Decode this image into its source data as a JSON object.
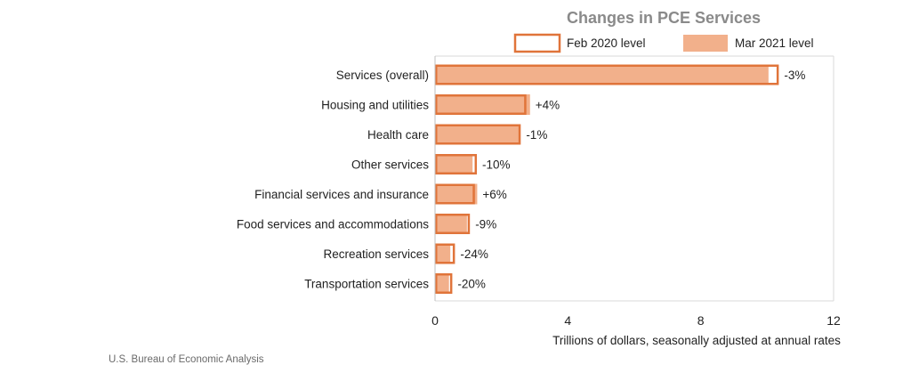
{
  "chart_data": {
    "type": "bar",
    "orientation": "horizontal",
    "title": "Changes in PCE Services",
    "xlabel": "Trillions of dollars, seasonally adjusted at annual rates",
    "xlim": [
      0,
      12
    ],
    "xticks": [
      "0",
      "4",
      "8",
      "12"
    ],
    "legend_position": "top-right",
    "grid": false,
    "categories": [
      "Services (overall)",
      "Housing and utilities",
      "Health care",
      "Other services",
      "Financial services and insurance",
      "Food services and accommodations",
      "Recreation services",
      "Transportation services"
    ],
    "series": [
      {
        "name": "Feb 2020 level",
        "style": "outline",
        "color": "#e0743a",
        "values": [
          10.35,
          2.75,
          2.58,
          1.26,
          1.2,
          1.05,
          0.6,
          0.52
        ]
      },
      {
        "name": "Mar 2021 level",
        "style": "filled",
        "color": "#f2b08b",
        "values": [
          10.04,
          2.86,
          2.55,
          1.13,
          1.27,
          0.96,
          0.46,
          0.42
        ]
      }
    ],
    "data_labels": [
      "-3%",
      "+4%",
      "-1%",
      "-10%",
      "+6%",
      "-9%",
      "-24%",
      "-20%"
    ]
  },
  "source": "U.S. Bureau of Economic Analysis"
}
